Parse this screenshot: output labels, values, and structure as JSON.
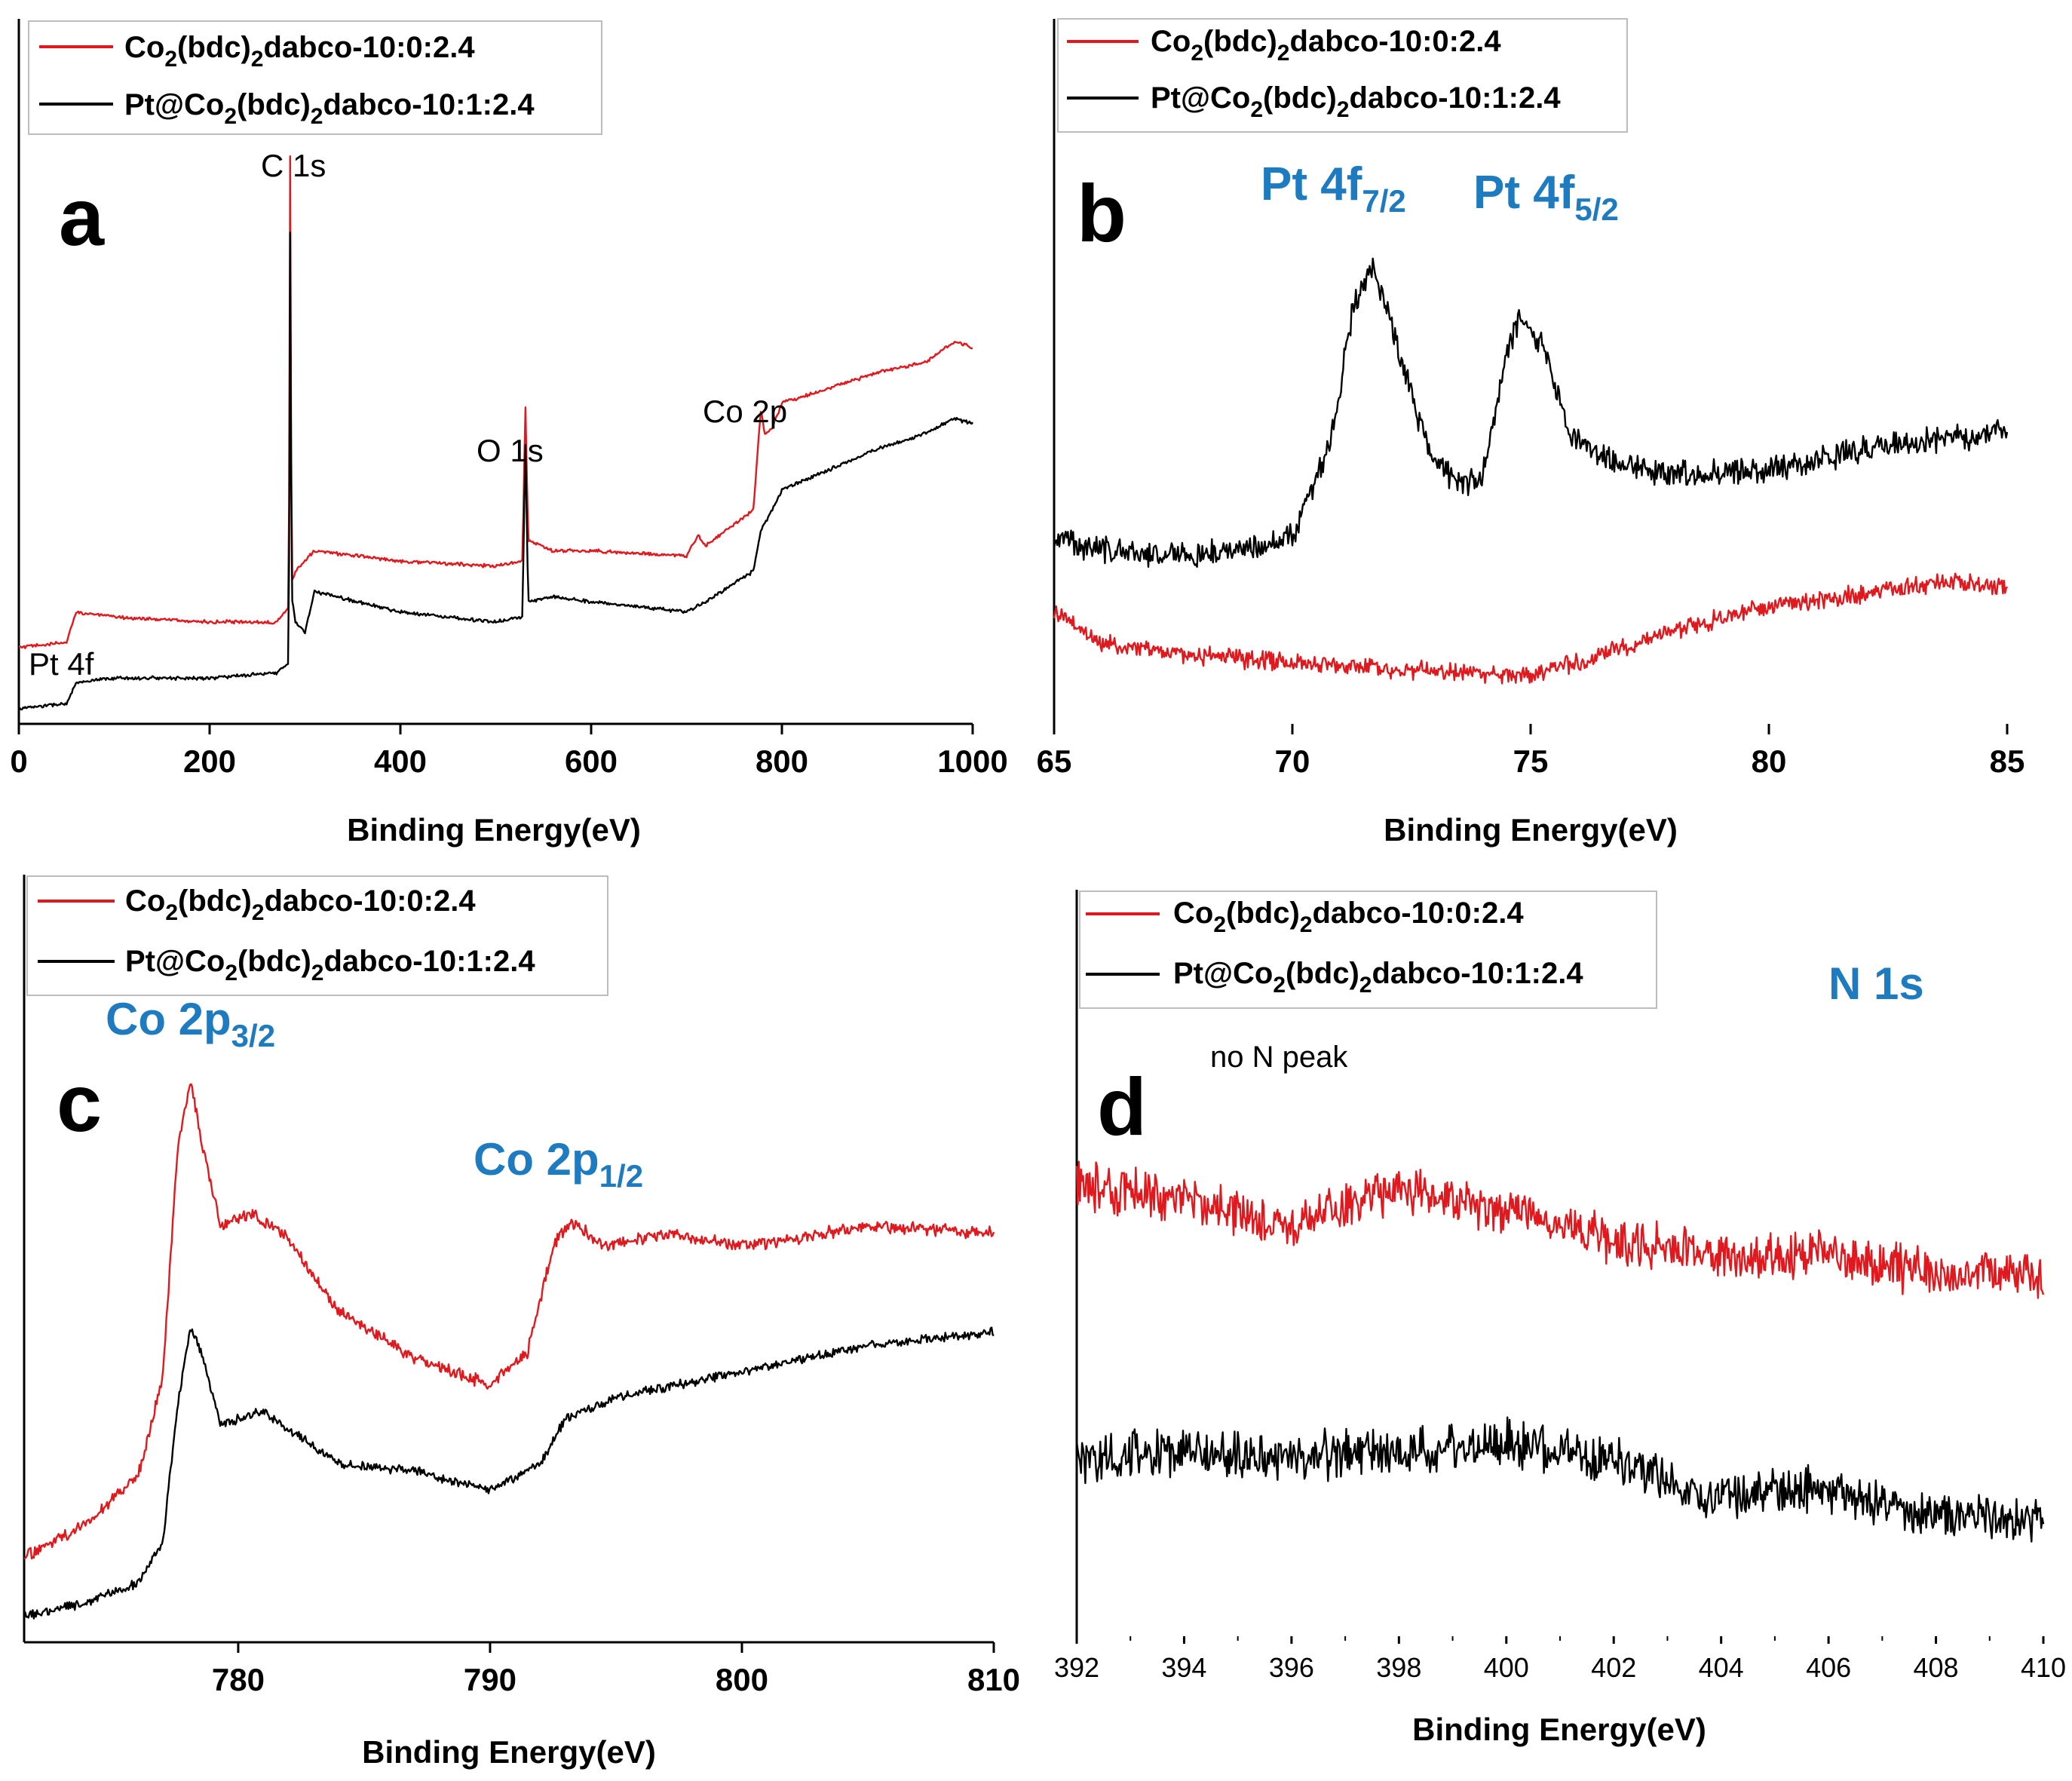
{
  "colors": {
    "red": "#e0191e",
    "black": "#000000",
    "blue": "#1f7bbf"
  },
  "chart_data": [
    {
      "type": "line",
      "panel": "a",
      "xlabel": "Binding Energy(eV)",
      "ylabel": "",
      "xlim": [
        0,
        1000
      ],
      "xticks": [
        0,
        200,
        400,
        600,
        800,
        1000
      ],
      "xtick_labels": [
        "0",
        "200",
        "400",
        "600",
        "800",
        "1000"
      ],
      "legend": [
        "Co",
        "2",
        "(bdc)",
        "2",
        "dabco-10:0:2.4",
        "Pt@Co",
        "2",
        "(bdc)",
        "2",
        "dabco-10:1:2.4"
      ],
      "annotations": [
        "C 1s",
        "O 1s",
        "Co 2p",
        "Pt 4f"
      ],
      "series": [
        {
          "name": "Co2(bdc)2dabco-10:0:2.4",
          "color": "red",
          "x": [
            0,
            50,
            60,
            100,
            200,
            270,
            283,
            284.5,
            286,
            290,
            310,
            400,
            500,
            528,
            531,
            534,
            560,
            600,
            700,
            712,
            720,
            770,
            778,
            782,
            790,
            800,
            850,
            900,
            950,
            980,
            1000
          ],
          "y": [
            1.5,
            1.6,
            2.2,
            2.1,
            2.0,
            2.0,
            2.3,
            11.5,
            2.8,
            3.0,
            3.4,
            3.2,
            3.1,
            3.2,
            6.3,
            3.6,
            3.4,
            3.4,
            3.3,
            3.7,
            3.5,
            4.2,
            6.2,
            5.7,
            5.8,
            6.3,
            6.6,
            6.9,
            7.1,
            7.5,
            7.4
          ]
        },
        {
          "name": "Pt@Co2(bdc)2dabco-10:1:2.4",
          "color": "black",
          "x": [
            0,
            50,
            60,
            100,
            200,
            270,
            283,
            284.5,
            286,
            290,
            300,
            310,
            400,
            500,
            528,
            531,
            534,
            560,
            600,
            700,
            720,
            770,
            778,
            790,
            800,
            850,
            900,
            950,
            980,
            1000
          ],
          "y": [
            0.3,
            0.4,
            0.8,
            0.9,
            0.9,
            1.0,
            1.2,
            10.0,
            2.5,
            2.0,
            1.8,
            2.6,
            2.2,
            2.0,
            2.1,
            5.6,
            2.4,
            2.5,
            2.4,
            2.2,
            2.4,
            3.0,
            3.8,
            4.2,
            4.6,
            5.0,
            5.4,
            5.7,
            6.0,
            5.9
          ]
        }
      ]
    },
    {
      "type": "line",
      "panel": "b",
      "xlabel": "Binding Energy(eV)",
      "ylabel": "",
      "xlim": [
        65,
        85
      ],
      "xticks": [
        65,
        70,
        75,
        80,
        85
      ],
      "xtick_labels": [
        "65",
        "70",
        "75",
        "80",
        "85"
      ],
      "legend": [
        "Co",
        "2",
        "(bdc)",
        "2",
        "dabco-10:0:2.4",
        "Pt@Co",
        "2",
        "(bdc)",
        "2",
        "dabco-10:1:2.4"
      ],
      "annotations": [
        "Pt 4f",
        "7/2",
        "Pt 4f",
        "5/2"
      ],
      "series": [
        {
          "name": "Co2(bdc)2dabco-10:0:2.4",
          "color": "red",
          "x": [
            65,
            66,
            68,
            70,
            72,
            74,
            75,
            76,
            78,
            80,
            82,
            84,
            85
          ],
          "y": [
            3.3,
            2.8,
            2.6,
            2.5,
            2.4,
            2.3,
            2.3,
            2.5,
            3.0,
            3.4,
            3.6,
            3.8,
            3.7
          ]
        },
        {
          "name": "Pt@Co2(bdc)2dabco-10:1:2.4",
          "color": "black",
          "x": [
            65,
            66,
            68,
            70,
            70.8,
            71.3,
            71.7,
            72.2,
            72.8,
            73.5,
            74.0,
            74.5,
            74.8,
            75.3,
            75.8,
            76.5,
            78,
            80,
            82,
            84,
            85
          ],
          "y": [
            4.5,
            4.3,
            4.2,
            4.5,
            6.0,
            8.3,
            8.8,
            7.6,
            6.0,
            5.3,
            5.5,
            7.5,
            8.1,
            7.5,
            6.2,
            5.8,
            5.5,
            5.6,
            5.9,
            6.1,
            6.2
          ]
        }
      ]
    },
    {
      "type": "line",
      "panel": "c",
      "xlabel": "Binding Energy(eV)",
      "ylabel": "",
      "xlim": [
        771.5,
        810
      ],
      "xticks": [
        780,
        790,
        800,
        810
      ],
      "xtick_labels": [
        "780",
        "790",
        "800",
        "810"
      ],
      "legend": [
        "Co",
        "2",
        "(bdc)",
        "2",
        "dabco-10:0:2.4",
        "Pt@Co",
        "2",
        "(bdc)",
        "2",
        "dabco-10:1:2.4"
      ],
      "annotations": [
        "Co 2p",
        "3/2",
        "Co 2p",
        "1/2"
      ],
      "series": [
        {
          "name": "Co2(bdc)2dabco-10:0:2.4",
          "color": "red",
          "x": [
            771.5,
            774,
            776,
            777,
            777.6,
            778.1,
            778.6,
            779.3,
            780.5,
            782,
            784,
            787,
            790,
            791.5,
            792.5,
            793.2,
            794.5,
            797,
            800,
            805,
            810
          ],
          "y": [
            1.3,
            1.8,
            2.5,
            4.0,
            7.5,
            8.5,
            7.5,
            6.3,
            6.5,
            6.1,
            5.0,
            4.3,
            3.9,
            4.4,
            6.0,
            6.4,
            6.0,
            6.2,
            6.0,
            6.3,
            6.2
          ]
        },
        {
          "name": "Pt@Co2(bdc)2dabco-10:1:2.4",
          "color": "black",
          "x": [
            771.5,
            774,
            776,
            777,
            777.6,
            778.1,
            778.6,
            779.3,
            781,
            784,
            787,
            790,
            792,
            793,
            795,
            800,
            805,
            810
          ],
          "y": [
            0.4,
            0.6,
            0.9,
            1.5,
            3.6,
            4.8,
            4.3,
            3.3,
            3.5,
            2.7,
            2.6,
            2.3,
            2.7,
            3.4,
            3.7,
            4.1,
            4.5,
            4.7
          ]
        }
      ]
    },
    {
      "type": "line",
      "panel": "d",
      "xlabel": "Binding Energy(eV)",
      "ylabel": "",
      "xlim": [
        392,
        410
      ],
      "xticks": [
        392,
        394,
        396,
        398,
        400,
        402,
        404,
        406,
        408,
        410
      ],
      "xtick_labels": [
        "392",
        "394",
        "396",
        "398",
        "400",
        "402",
        "404",
        "406",
        "408",
        "410"
      ],
      "legend": [
        "Co",
        "2",
        "(bdc)",
        "2",
        "dabco-10:0:2.4",
        "Pt@Co",
        "2",
        "(bdc)",
        "2",
        "dabco-10:1:2.4"
      ],
      "annotations": [
        "N 1s",
        "no N peak"
      ],
      "series": [
        {
          "name": "Co2(bdc)2dabco-10:0:2.4",
          "color": "red",
          "x": [
            392,
            394,
            396,
            398,
            400,
            402,
            404,
            406,
            408,
            410
          ],
          "y": [
            6.3,
            6.1,
            5.8,
            6.3,
            6.0,
            5.6,
            5.4,
            5.4,
            5.2,
            5.1
          ]
        },
        {
          "name": "Pt@Co2(bdc)2dabco-10:1:2.4",
          "color": "black",
          "x": [
            392,
            394,
            396,
            398,
            400,
            402,
            404,
            406,
            408,
            410
          ],
          "y": [
            2.8,
            2.9,
            2.8,
            2.9,
            3.0,
            2.8,
            2.3,
            2.4,
            2.1,
            2.0
          ]
        }
      ]
    }
  ]
}
